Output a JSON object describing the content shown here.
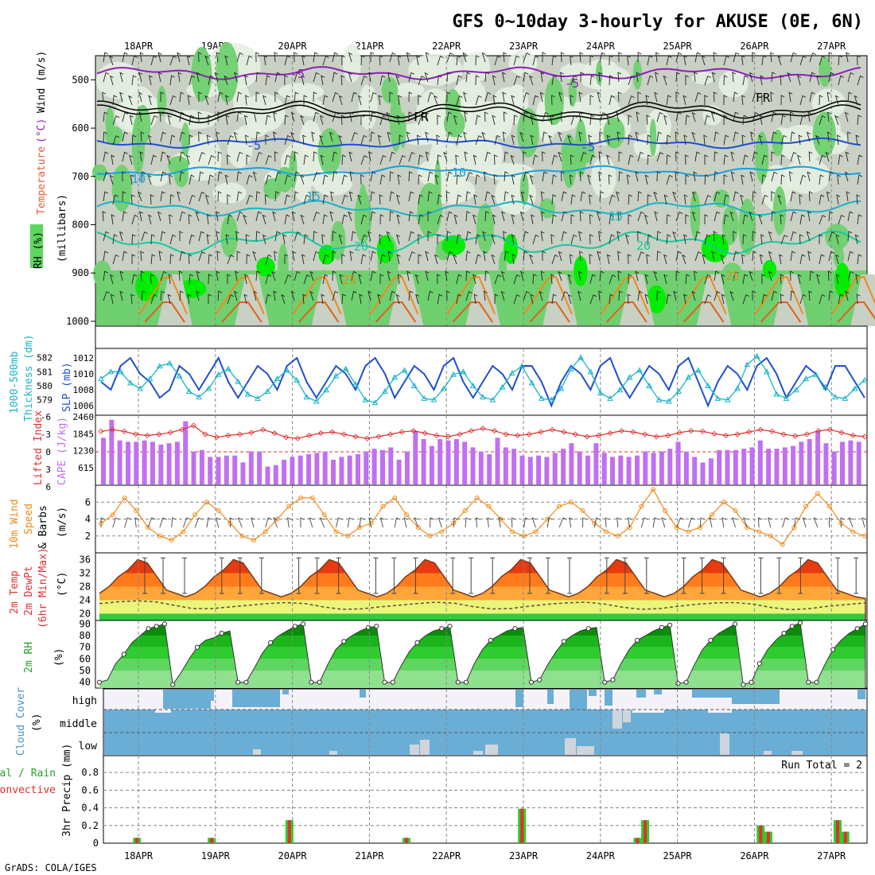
{
  "title": "GFS 0~10day 3-hourly for AKUSE (0E, 6N)",
  "dates": [
    "18APR",
    "19APR",
    "20APR",
    "21APR",
    "22APR",
    "23APR",
    "24APR",
    "25APR",
    "26APR",
    "27APR"
  ],
  "footer": "GrADS: COLA/IGES",
  "colors": {
    "panel_bg": "#c9d0c4",
    "rh_green": "#5cd65c",
    "purple": "#8e1fb8",
    "blue": "#1f4fcf",
    "cyan": "#19b4c8",
    "orange": "#f08a1a",
    "red": "#e03030",
    "cloud": "#6aaed6"
  },
  "panels": {
    "upper": {
      "side_labels": {
        "rh": "RH (%)",
        "temperature": "Temperature",
        "temp_unit": "(°C)",
        "wind": "Wind (m/s)",
        "millibars": "(millibars)"
      },
      "yticks": [
        "500",
        "600",
        "700",
        "800",
        "900",
        "1000"
      ],
      "contour_labels": [
        "-5",
        "-5",
        "FR",
        "FR",
        "-5",
        "-5",
        "10",
        "10",
        "15",
        "15",
        "20",
        "20",
        "25",
        "25"
      ]
    },
    "slp": {
      "side_left": "1000-500mb",
      "side_left2": "Thickness (dm)",
      "side_right": "SLP (mb)",
      "yticks_left": [
        "582",
        "581",
        "580",
        "579"
      ],
      "yticks_right": [
        "1012",
        "1010",
        "1008",
        "1006"
      ]
    },
    "cape": {
      "side_left": "Lifted Index",
      "side_right": "CAPE (J/kg)",
      "yticks_left": [
        "-6",
        "-3",
        "0",
        "3",
        "6"
      ],
      "yticks_right": [
        "2460",
        "1845",
        "1230",
        "615"
      ]
    },
    "wind10": {
      "side_1": "10m Wind",
      "side_2": "Speed",
      "side_3": "& Barbs",
      "side_4": "(m/s)",
      "yticks": [
        "6",
        "4",
        "2"
      ]
    },
    "temp2m": {
      "side_1": "2m Temp",
      "side_2": "2m DewPt",
      "side_3": "(6hr Min/Max)",
      "side_4": "(°C)",
      "yticks": [
        "36",
        "32",
        "28",
        "24",
        "20"
      ]
    },
    "rh2m": {
      "side_1": "2m RH",
      "side_2": "(%)",
      "yticks": [
        "90",
        "80",
        "70",
        "60",
        "50",
        "40"
      ]
    },
    "cloud": {
      "side_1": "Cloud Cover",
      "side_2": "(%)",
      "levels": [
        "high",
        "middle",
        "low"
      ]
    },
    "precip": {
      "side_1": "Total / Rain",
      "side_2": "Convective",
      "side_3": "3hr Precip (mm)",
      "run_total": "Run Total = 2",
      "yticks": [
        "0.8",
        "0.6",
        "0.4",
        "0.2",
        "0"
      ]
    }
  },
  "chart_data": [
    {
      "type": "line",
      "title": "Sea level pressure",
      "ylabel": "SLP (mb)",
      "ylim": [
        1005,
        1013
      ],
      "series": [
        {
          "name": "SLP",
          "values": [
            1009,
            1008,
            1011,
            1012,
            1010,
            1009,
            1007,
            1008,
            1011,
            1010,
            1008,
            1010,
            1012,
            1009,
            1007,
            1009,
            1011,
            1010,
            1008,
            1011,
            1012,
            1009,
            1007,
            1009,
            1011,
            1010,
            1008,
            1011,
            1012,
            1010,
            1007,
            1009,
            1011,
            1010,
            1008,
            1011,
            1012,
            1009,
            1007,
            1009,
            1011,
            1010,
            1008,
            1011,
            1011,
            1009,
            1006,
            1009,
            1011,
            1010,
            1008,
            1011,
            1012,
            1009,
            1007,
            1009,
            1011,
            1010,
            1008,
            1011,
            1012,
            1009,
            1006,
            1009,
            1011,
            1010,
            1008,
            1011,
            1012,
            1010,
            1007,
            1009,
            1011,
            1010,
            1008,
            1011,
            1011,
            1009,
            1007
          ]
        },
        {
          "name": "Thickness",
          "values": [
            580.5,
            581,
            581,
            580.2,
            579.8,
            580.5,
            581.4,
            581.6,
            580.7,
            579.6,
            579.2,
            579.8,
            580.8,
            581.2,
            580.3,
            579.4,
            579.1,
            579.6,
            580.5,
            581.1,
            580.4,
            579.2,
            578.9,
            579.7,
            580.7,
            581.2,
            580.1,
            579.0,
            578.8,
            579.6,
            580.6,
            581.1,
            580.0,
            579.1,
            579.0,
            579.8,
            580.8,
            581.0,
            580.0,
            579.2,
            579.0,
            579.9,
            580.9,
            581.4,
            580.2,
            579.1,
            579.0,
            579.8,
            581.2,
            582.0,
            581.0,
            579.5,
            579.1,
            579.7,
            580.6,
            581.1,
            580.0,
            579.0,
            578.9,
            579.6,
            580.6,
            581.1,
            580.0,
            579.1,
            579.0,
            579.8,
            581.5,
            582.1,
            581.0,
            579.4,
            579.1,
            579.7,
            580.5,
            580.8,
            579.9,
            579.2,
            579.1,
            579.8,
            580.4
          ]
        }
      ]
    },
    {
      "type": "bar",
      "title": "CAPE",
      "ylabel": "CAPE (J/kg)",
      "ylim": [
        0,
        2460
      ],
      "values": [
        1700,
        2350,
        1600,
        1550,
        1550,
        1600,
        1550,
        1450,
        1500,
        1550,
        2300,
        1200,
        1250,
        1000,
        1000,
        1050,
        1050,
        800,
        1200,
        1200,
        650,
        700,
        900,
        1000,
        1050,
        1100,
        1150,
        1200,
        900,
        1000,
        1050,
        1100,
        1200,
        1300,
        1250,
        1350,
        900,
        1200,
        1950,
        1650,
        1400,
        1650,
        1600,
        1650,
        1550,
        1350,
        1200,
        1100,
        1700,
        1350,
        1300,
        1050,
        1000,
        1050,
        1000,
        1150,
        1300,
        1500,
        1200,
        1050,
        1500,
        1150,
        1000,
        1050,
        1000,
        1050,
        1200,
        1150,
        1200,
        1300,
        1550,
        1200,
        1000,
        800,
        950,
        1250,
        1250,
        1250,
        1300,
        1350,
        1600,
        1300,
        1300,
        1350,
        1400,
        1550,
        1650,
        1950,
        1500,
        1200,
        1550,
        1600,
        1550
      ]
    },
    {
      "type": "line",
      "title": "Lifted Index",
      "ylabel": "Lifted Index",
      "ylim": [
        -6,
        6
      ],
      "values": [
        -3.5,
        -3.8,
        -3.5,
        -3.0,
        -2.8,
        -3.0,
        -3.3,
        -3.8,
        -4.5,
        -3.0,
        -2.5,
        -2.8,
        -3.0,
        -3.3,
        -3.8,
        -3.2,
        -2.5,
        -2.3,
        -2.8,
        -3.2,
        -3.4,
        -3.0,
        -2.6,
        -2.3,
        -2.6,
        -3.0,
        -3.4,
        -3.6,
        -3.2,
        -2.8,
        -2.6,
        -3.0,
        -3.6,
        -4.0,
        -3.6,
        -3.0,
        -2.8,
        -3.0,
        -3.4,
        -3.8,
        -3.4,
        -3.0,
        -2.6,
        -2.8,
        -3.2,
        -3.6,
        -3.4,
        -3.0,
        -2.6,
        -2.8,
        -3.3,
        -3.6,
        -3.5,
        -3.1,
        -2.8,
        -3.0,
        -3.4,
        -3.8,
        -3.5,
        -3.0,
        -2.7,
        -3.0,
        -3.6,
        -3.8,
        -3.3,
        -2.8,
        -2.6
      ]
    },
    {
      "type": "line",
      "title": "10m wind speed",
      "ylabel": "m/s",
      "ylim": [
        0,
        8
      ],
      "values": [
        3.5,
        4.5,
        6.5,
        5,
        3,
        2,
        1.5,
        2.5,
        4.5,
        6,
        5,
        3.5,
        2,
        1.5,
        2.5,
        4,
        5.5,
        6.5,
        6.5,
        4.5,
        2.5,
        2,
        3,
        3.5,
        5.5,
        6.5,
        4.5,
        3,
        2,
        2.5,
        3.5,
        5,
        6.5,
        5.5,
        4,
        2.5,
        2,
        2.5,
        4,
        5.5,
        6,
        5,
        3.5,
        2.5,
        2,
        3,
        5.5,
        7.5,
        5,
        3,
        2.5,
        3,
        4.5,
        6,
        5,
        3,
        2.5,
        2,
        1,
        3,
        5.5,
        7,
        5.5,
        3.5,
        2.5,
        2
      ]
    },
    {
      "type": "area",
      "title": "2m temperature",
      "ylabel": "°C",
      "ylim": [
        18,
        38
      ],
      "values": [
        26,
        28,
        31,
        33,
        36,
        35,
        31,
        27,
        26,
        25,
        26,
        28,
        31,
        33,
        36,
        35,
        31,
        27,
        26,
        25,
        26,
        28,
        31,
        33,
        36,
        35,
        31,
        27,
        26,
        25,
        26,
        28,
        31,
        33,
        36,
        35,
        31,
        27,
        26,
        25,
        26,
        28,
        31,
        33,
        36,
        35,
        31,
        27,
        26,
        25,
        26,
        28,
        31,
        33,
        36,
        35,
        31,
        27,
        26,
        25,
        26,
        28,
        31,
        33,
        36,
        35,
        31,
        27,
        26,
        25,
        26,
        28,
        31,
        33,
        36,
        35,
        31,
        27,
        26,
        25,
        24.5
      ]
    },
    {
      "type": "line",
      "title": "2m dew point",
      "ylabel": "°C",
      "ylim": [
        18,
        38
      ],
      "values": [
        23,
        23.5,
        23.8,
        23.5,
        22.5,
        21.5,
        21.5,
        22,
        22.5,
        23,
        23.3,
        23,
        22,
        21.3,
        21.4,
        22,
        22.5,
        23,
        23.4,
        23.1,
        22.1,
        21.4,
        21.5,
        22.2,
        22.8,
        23.2,
        23.4,
        22.9,
        21.9,
        21.3,
        21.5,
        22.2,
        22.8,
        23.2,
        23.3,
        22.8,
        21.8,
        21.2,
        21.5,
        22.2,
        22.7,
        23.2
      ]
    },
    {
      "type": "area",
      "title": "2m relative humidity",
      "ylabel": "%",
      "ylim": [
        35,
        95
      ],
      "values": [
        40,
        42,
        56,
        64,
        74,
        80,
        86,
        88,
        90,
        38,
        48,
        60,
        70,
        76,
        78,
        82,
        84,
        40,
        40,
        52,
        65,
        74,
        80,
        84,
        88,
        90,
        40,
        40,
        55,
        68,
        75,
        80,
        84,
        87,
        88,
        40,
        40,
        54,
        66,
        74,
        80,
        84,
        86,
        88,
        40,
        40,
        56,
        68,
        76,
        80,
        84,
        86,
        87,
        40,
        42,
        55,
        66,
        75,
        80,
        84,
        86,
        87,
        40,
        42,
        56,
        68,
        76,
        80,
        84,
        87,
        89,
        39,
        40,
        55,
        68,
        76,
        82,
        86,
        90,
        38,
        40,
        56,
        68,
        76,
        82,
        88,
        91,
        40,
        40,
        55,
        68,
        76,
        82,
        86,
        90
      ]
    },
    {
      "type": "bar",
      "title": "3hr precipitation",
      "ylabel": "3hr Precip (mm)",
      "ylim": [
        0,
        1
      ],
      "x_day": [
        0.95,
        1.92,
        2.93,
        4.45,
        5.95,
        7.45,
        7.55,
        9.05,
        9.15,
        10.05,
        10.15
      ],
      "values": [
        0.06,
        0.06,
        0.26,
        0.06,
        0.39,
        0.06,
        0.26,
        0.2,
        0.13,
        0.26,
        0.13
      ]
    }
  ]
}
